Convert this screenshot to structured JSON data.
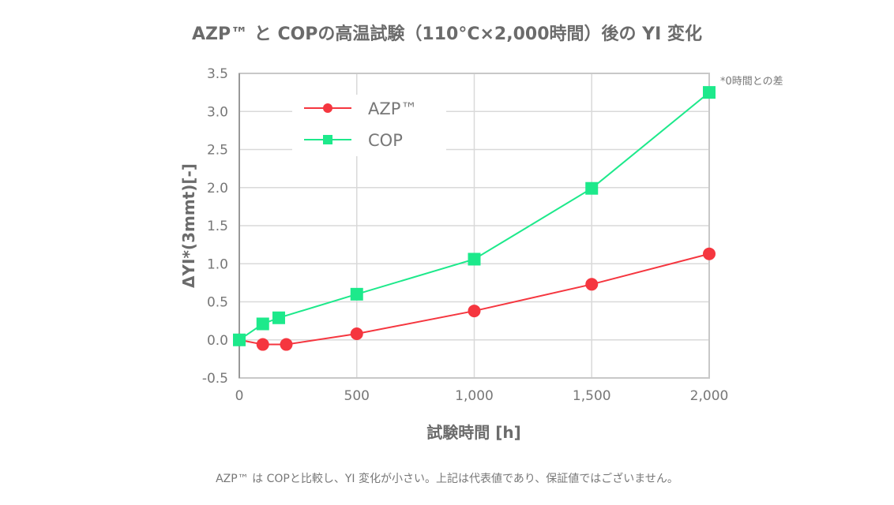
{
  "chart_data": {
    "type": "line",
    "title": "AZP™ と COPの高温試験（110°C×2,000時間）後の YI 変化",
    "xlabel": "試験時間 [h]",
    "ylabel": "ΔYI*(3mmt)[-]",
    "note": "*0時間との差",
    "caption": "AZP™ は COPと比較し、YI 変化が小さい。上記は代表値であり、保証値ではございません。",
    "xlim": [
      0,
      2000
    ],
    "ylim": [
      -0.5,
      3.5
    ],
    "xticks": [
      0,
      500,
      1000,
      1500,
      2000
    ],
    "xtick_labels": [
      "0",
      "500",
      "1,000",
      "1,500",
      "2,000"
    ],
    "yticks": [
      -0.5,
      0,
      0.5,
      1,
      1.5,
      2,
      2.5,
      3,
      3.5
    ],
    "ytick_labels": [
      "-0.5",
      "0.0",
      "0.5",
      "1.0",
      "1.5",
      "2.0",
      "2.5",
      "3.0",
      "3.5"
    ],
    "grid": true,
    "legend_position": "top-left",
    "series": [
      {
        "name": "AZP™",
        "color": "#f5363f",
        "marker": "circle",
        "x": [
          0,
          100,
          200,
          500,
          1000,
          1500,
          2000
        ],
        "y": [
          0.0,
          -0.06,
          -0.06,
          0.08,
          0.38,
          0.73,
          1.13
        ]
      },
      {
        "name": "COP",
        "color": "#1de98b",
        "marker": "square",
        "x": [
          0,
          100,
          168,
          500,
          1000,
          1500,
          2000
        ],
        "y": [
          0.0,
          0.21,
          0.29,
          0.6,
          1.06,
          1.99,
          3.25
        ]
      }
    ]
  }
}
